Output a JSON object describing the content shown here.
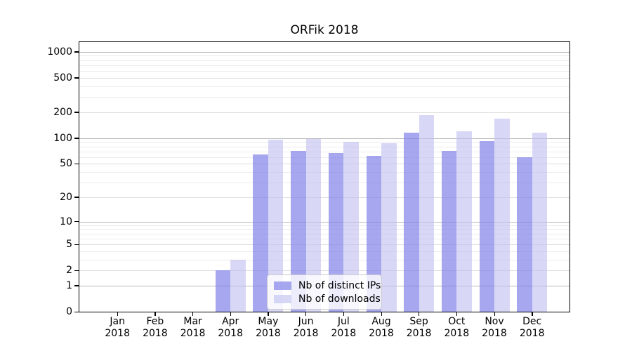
{
  "chart_data": {
    "type": "bar",
    "title": "ORFik 2018",
    "categories": [
      "Jan",
      "Feb",
      "Mar",
      "Apr",
      "May",
      "Jun",
      "Jul",
      "Aug",
      "Sep",
      "Oct",
      "Nov",
      "Dec"
    ],
    "year_label": "2018",
    "series": [
      {
        "name": "Nb of distinct IPs",
        "color": "rgba(129,129,234,0.7)",
        "values": [
          0,
          0,
          0,
          2,
          65,
          71,
          67,
          62,
          116,
          71,
          92,
          60
        ]
      },
      {
        "name": "Nb of downloads",
        "color": "rgba(190,190,240,0.6)",
        "values": [
          0,
          0,
          0,
          3,
          95,
          98,
          90,
          87,
          185,
          121,
          170,
          115
        ]
      }
    ],
    "yticks": [
      0,
      1,
      2,
      5,
      10,
      20,
      50,
      100,
      200,
      500,
      1000
    ],
    "y_scale": "log10(1+v)",
    "ylim": [
      0,
      1296
    ],
    "xlabel": "",
    "ylabel": "",
    "grid": true,
    "legend_position": "lower-center"
  }
}
